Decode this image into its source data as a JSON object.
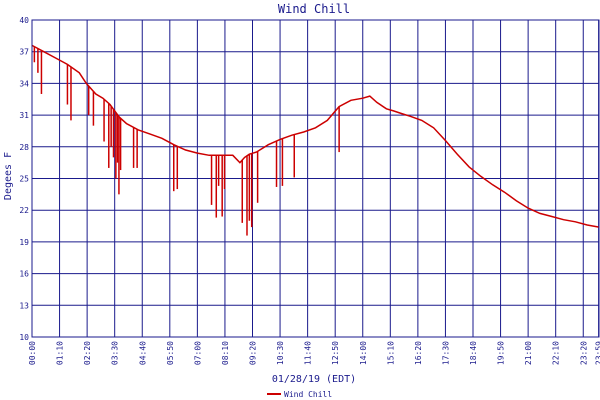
{
  "chart_data": {
    "type": "line",
    "title": "Wind Chill",
    "xlabel": "01/28/19 (EDT)",
    "ylabel": "Degees F",
    "ylim": [
      10,
      40
    ],
    "yticks": [
      10,
      13,
      16,
      19,
      22,
      25,
      28,
      31,
      34,
      37,
      40
    ],
    "xticks": [
      "00:00",
      "01:10",
      "02:20",
      "03:30",
      "04:40",
      "05:50",
      "07:00",
      "08:10",
      "09:20",
      "10:30",
      "11:40",
      "12:50",
      "14:00",
      "15:10",
      "16:20",
      "17:30",
      "18:40",
      "19:50",
      "21:00",
      "22:10",
      "23:20",
      "23:59"
    ],
    "xlim_hours": [
      0,
      24
    ],
    "grid": true,
    "legend": "bottom-center",
    "colors": {
      "series": "#cc0000",
      "grid": "#1a1a8c",
      "text": "#1a1a8c"
    },
    "series": [
      {
        "name": "Wind Chill",
        "x_hours": [
          0.0,
          0.5,
          1.0,
          1.5,
          2.0,
          2.3,
          2.7,
          3.0,
          3.3,
          3.5,
          3.7,
          4.0,
          4.5,
          5.0,
          5.5,
          6.0,
          6.5,
          7.0,
          7.5,
          8.0,
          8.5,
          8.8,
          9.0,
          9.2,
          9.5,
          10.0,
          10.5,
          11.0,
          11.5,
          12.0,
          12.5,
          13.0,
          13.5,
          14.0,
          14.3,
          14.6,
          15.0,
          15.3,
          15.7,
          16.0,
          16.5,
          17.0,
          17.5,
          18.0,
          18.5,
          19.0,
          19.5,
          20.0,
          20.5,
          21.0,
          21.5,
          22.0,
          22.5,
          23.0,
          23.5,
          24.0
        ],
        "values": [
          37.6,
          37.0,
          36.4,
          35.8,
          35.0,
          34.0,
          33.0,
          32.6,
          32.0,
          31.4,
          30.8,
          30.2,
          29.6,
          29.2,
          28.8,
          28.2,
          27.7,
          27.4,
          27.2,
          27.2,
          27.2,
          26.5,
          27.0,
          27.3,
          27.5,
          28.2,
          28.7,
          29.1,
          29.4,
          29.8,
          30.5,
          31.8,
          32.4,
          32.6,
          32.8,
          32.2,
          31.6,
          31.4,
          31.1,
          30.9,
          30.5,
          29.8,
          28.6,
          27.3,
          26.1,
          25.2,
          24.4,
          23.7,
          22.9,
          22.2,
          21.7,
          21.4,
          21.1,
          20.9,
          20.6,
          20.4
        ]
      }
    ],
    "dips": {
      "x_hours": [
        0.1,
        0.25,
        0.4,
        1.5,
        1.65,
        2.4,
        2.6,
        3.05,
        3.25,
        3.35,
        3.45,
        3.55,
        3.62,
        3.68,
        3.75,
        4.3,
        4.45,
        6.0,
        6.15,
        7.6,
        7.8,
        7.9,
        8.05,
        8.15,
        8.9,
        9.1,
        9.2,
        9.3,
        9.55,
        10.35,
        10.6,
        11.1,
        13.0
      ],
      "values": [
        36.0,
        35.0,
        33.0,
        32.0,
        30.5,
        31.0,
        30.0,
        28.5,
        26.0,
        28.0,
        27.0,
        25.0,
        26.5,
        23.5,
        25.8,
        26.0,
        26.0,
        23.8,
        24.0,
        22.5,
        21.3,
        24.3,
        21.4,
        24.0,
        20.8,
        19.6,
        21.0,
        20.4,
        22.7,
        24.2,
        24.3,
        25.1,
        27.5
      ]
    }
  }
}
